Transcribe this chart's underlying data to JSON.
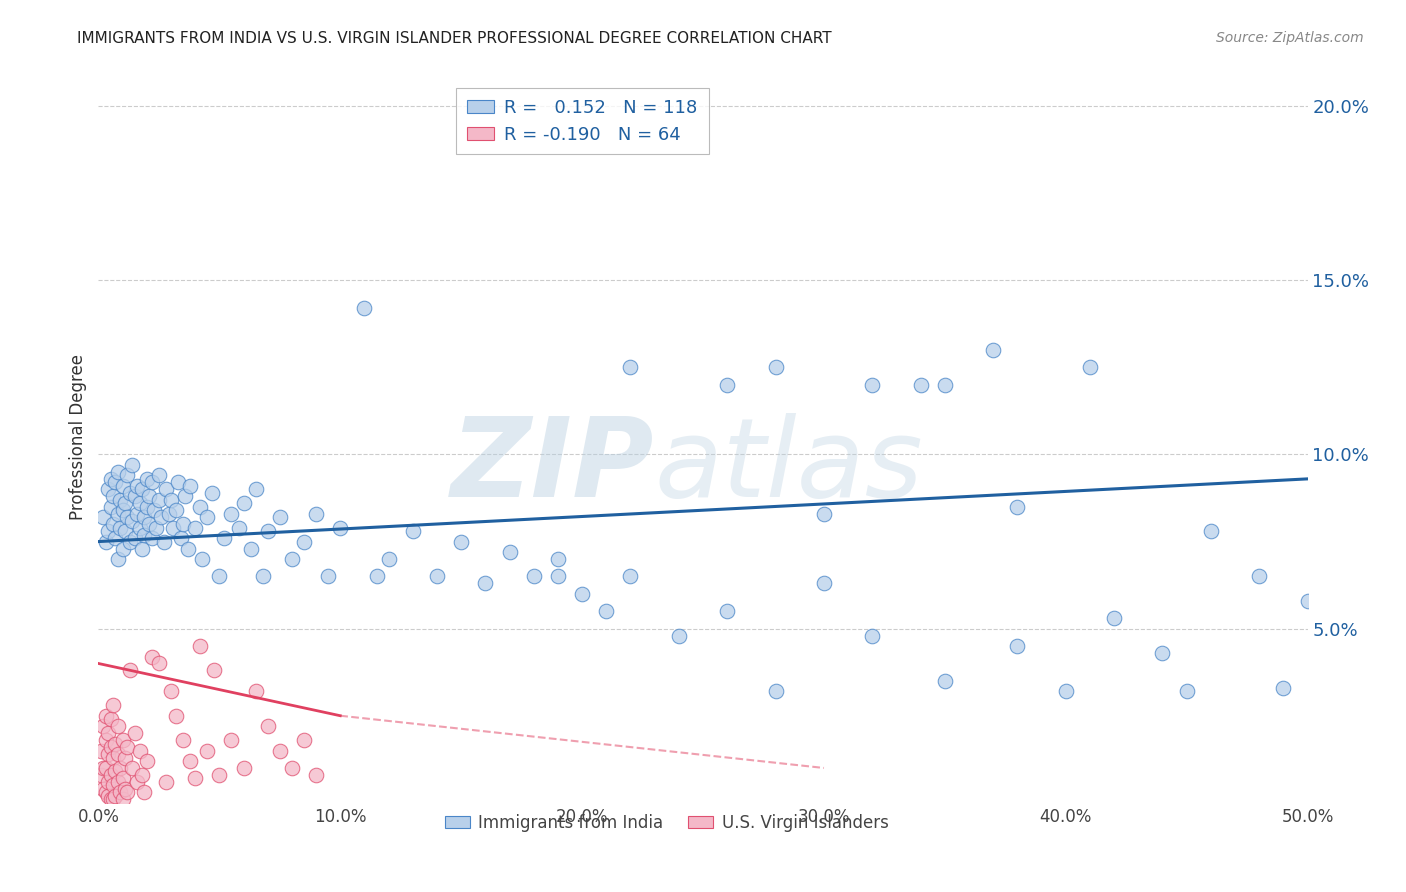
{
  "title": "IMMIGRANTS FROM INDIA VS U.S. VIRGIN ISLANDER PROFESSIONAL DEGREE CORRELATION CHART",
  "source": "Source: ZipAtlas.com",
  "ylabel": "Professional Degree",
  "xlim": [
    0.0,
    0.5
  ],
  "ylim": [
    0.0,
    0.21
  ],
  "xticks": [
    0.0,
    0.1,
    0.2,
    0.3,
    0.4,
    0.5
  ],
  "xticklabels": [
    "0.0%",
    "10.0%",
    "20.0%",
    "30.0%",
    "40.0%",
    "50.0%"
  ],
  "yticks_right": [
    0.05,
    0.1,
    0.15,
    0.2
  ],
  "yticklabels_right": [
    "5.0%",
    "10.0%",
    "15.0%",
    "20.0%"
  ],
  "legend_blue_r": "0.152",
  "legend_blue_n": "118",
  "legend_pink_r": "-0.190",
  "legend_pink_n": "64",
  "blue_color": "#b8d0ea",
  "blue_edge_color": "#4a86c8",
  "pink_color": "#f4b8c8",
  "pink_edge_color": "#e05070",
  "blue_line_color": "#2060a0",
  "pink_line_color": "#e04060",
  "blue_points_x": [
    0.002,
    0.003,
    0.004,
    0.004,
    0.005,
    0.005,
    0.006,
    0.006,
    0.007,
    0.007,
    0.008,
    0.008,
    0.008,
    0.009,
    0.009,
    0.01,
    0.01,
    0.01,
    0.011,
    0.011,
    0.012,
    0.012,
    0.013,
    0.013,
    0.014,
    0.014,
    0.015,
    0.015,
    0.016,
    0.016,
    0.017,
    0.017,
    0.018,
    0.018,
    0.019,
    0.019,
    0.02,
    0.02,
    0.021,
    0.021,
    0.022,
    0.022,
    0.023,
    0.024,
    0.025,
    0.025,
    0.026,
    0.027,
    0.028,
    0.029,
    0.03,
    0.031,
    0.032,
    0.033,
    0.034,
    0.035,
    0.036,
    0.037,
    0.038,
    0.04,
    0.042,
    0.043,
    0.045,
    0.047,
    0.05,
    0.052,
    0.055,
    0.058,
    0.06,
    0.063,
    0.065,
    0.068,
    0.07,
    0.075,
    0.08,
    0.085,
    0.09,
    0.095,
    0.1,
    0.11,
    0.115,
    0.12,
    0.13,
    0.14,
    0.15,
    0.16,
    0.17,
    0.18,
    0.19,
    0.2,
    0.21,
    0.22,
    0.24,
    0.26,
    0.28,
    0.3,
    0.32,
    0.35,
    0.38,
    0.4,
    0.42,
    0.44,
    0.46,
    0.48,
    0.49,
    0.5,
    0.32,
    0.28,
    0.37,
    0.35,
    0.41,
    0.45,
    0.3,
    0.26,
    0.38,
    0.34,
    0.22,
    0.19
  ],
  "blue_points_y": [
    0.082,
    0.075,
    0.09,
    0.078,
    0.085,
    0.093,
    0.08,
    0.088,
    0.076,
    0.092,
    0.083,
    0.07,
    0.095,
    0.079,
    0.087,
    0.073,
    0.091,
    0.084,
    0.078,
    0.086,
    0.082,
    0.094,
    0.075,
    0.089,
    0.081,
    0.097,
    0.076,
    0.088,
    0.083,
    0.091,
    0.079,
    0.086,
    0.073,
    0.09,
    0.082,
    0.077,
    0.085,
    0.093,
    0.08,
    0.088,
    0.076,
    0.092,
    0.084,
    0.079,
    0.087,
    0.094,
    0.082,
    0.075,
    0.09,
    0.083,
    0.087,
    0.079,
    0.084,
    0.092,
    0.076,
    0.08,
    0.088,
    0.073,
    0.091,
    0.079,
    0.085,
    0.07,
    0.082,
    0.089,
    0.065,
    0.076,
    0.083,
    0.079,
    0.086,
    0.073,
    0.09,
    0.065,
    0.078,
    0.082,
    0.07,
    0.075,
    0.083,
    0.065,
    0.079,
    0.142,
    0.065,
    0.07,
    0.078,
    0.065,
    0.075,
    0.063,
    0.072,
    0.065,
    0.07,
    0.06,
    0.055,
    0.065,
    0.048,
    0.055,
    0.032,
    0.063,
    0.048,
    0.035,
    0.045,
    0.032,
    0.053,
    0.043,
    0.078,
    0.065,
    0.033,
    0.058,
    0.12,
    0.125,
    0.13,
    0.12,
    0.125,
    0.032,
    0.083,
    0.12,
    0.085,
    0.12,
    0.125,
    0.065
  ],
  "pink_points_x": [
    0.001,
    0.001,
    0.002,
    0.002,
    0.002,
    0.003,
    0.003,
    0.003,
    0.003,
    0.004,
    0.004,
    0.004,
    0.004,
    0.005,
    0.005,
    0.005,
    0.005,
    0.006,
    0.006,
    0.006,
    0.006,
    0.007,
    0.007,
    0.007,
    0.008,
    0.008,
    0.008,
    0.009,
    0.009,
    0.01,
    0.01,
    0.01,
    0.011,
    0.011,
    0.012,
    0.012,
    0.013,
    0.014,
    0.015,
    0.016,
    0.017,
    0.018,
    0.019,
    0.02,
    0.022,
    0.025,
    0.028,
    0.03,
    0.032,
    0.035,
    0.038,
    0.04,
    0.042,
    0.045,
    0.048,
    0.05,
    0.055,
    0.06,
    0.065,
    0.07,
    0.075,
    0.08,
    0.085,
    0.09
  ],
  "pink_points_y": [
    0.015,
    0.008,
    0.022,
    0.01,
    0.004,
    0.018,
    0.01,
    0.003,
    0.025,
    0.014,
    0.006,
    0.02,
    0.002,
    0.016,
    0.008,
    0.024,
    0.001,
    0.013,
    0.005,
    0.028,
    0.001,
    0.017,
    0.009,
    0.002,
    0.014,
    0.006,
    0.022,
    0.01,
    0.003,
    0.018,
    0.007,
    0.001,
    0.013,
    0.004,
    0.016,
    0.003,
    0.038,
    0.01,
    0.02,
    0.006,
    0.015,
    0.008,
    0.003,
    0.012,
    0.042,
    0.04,
    0.006,
    0.032,
    0.025,
    0.018,
    0.012,
    0.007,
    0.045,
    0.015,
    0.038,
    0.008,
    0.018,
    0.01,
    0.032,
    0.022,
    0.015,
    0.01,
    0.018,
    0.008
  ]
}
